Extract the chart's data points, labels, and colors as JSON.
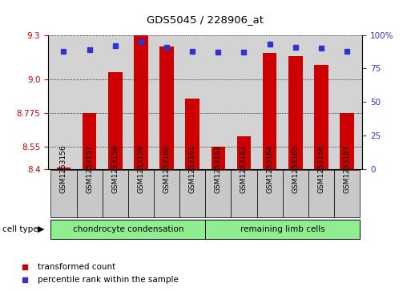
{
  "title": "GDS5045 / 228906_at",
  "samples": [
    "GSM1253156",
    "GSM1253157",
    "GSM1253158",
    "GSM1253159",
    "GSM1253160",
    "GSM1253161",
    "GSM1253162",
    "GSM1253163",
    "GSM1253164",
    "GSM1253165",
    "GSM1253166",
    "GSM1253167"
  ],
  "transformed_count": [
    8.41,
    8.775,
    9.05,
    9.3,
    9.22,
    8.87,
    8.55,
    8.62,
    9.18,
    9.16,
    9.1,
    8.775
  ],
  "percentile_rank": [
    88,
    89,
    92,
    95,
    91,
    88,
    87,
    87,
    93,
    91,
    90,
    88
  ],
  "cell_type_groups": [
    {
      "label": "chondrocyte condensation",
      "count": 6,
      "color": "#90EE90"
    },
    {
      "label": "remaining limb cells",
      "count": 6,
      "color": "#90EE90"
    }
  ],
  "ylim_left": [
    8.4,
    9.3
  ],
  "ylim_right": [
    0,
    100
  ],
  "left_ticks": [
    8.4,
    8.55,
    8.775,
    9.0,
    9.3
  ],
  "right_ticks": [
    0,
    25,
    50,
    75,
    100
  ],
  "bar_color": "#CC0000",
  "dot_color": "#3333CC",
  "background_color": "#D3D3D3",
  "sample_box_color": "#C8C8C8",
  "left_tick_color": "#CC0000",
  "right_tick_color": "#3333CC",
  "figwidth": 5.23,
  "figheight": 3.63,
  "dpi": 100
}
